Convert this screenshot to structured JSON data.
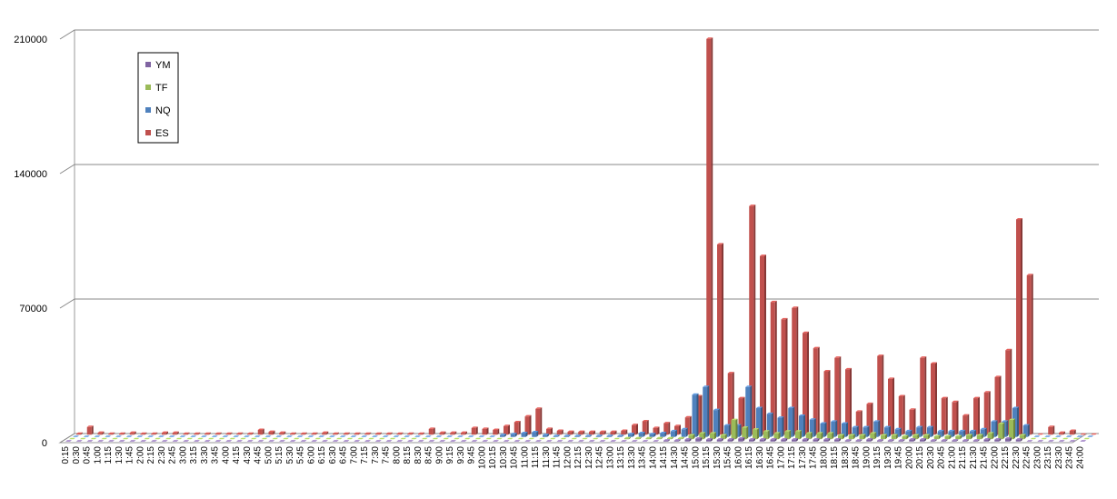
{
  "chart_data": {
    "type": "bar3d",
    "categories": [
      "0:15",
      "0:30",
      "0:45",
      "1:00",
      "1:15",
      "1:30",
      "1:45",
      "2:00",
      "2:15",
      "2:30",
      "2:45",
      "3:00",
      "3:15",
      "3:30",
      "3:45",
      "4:00",
      "4:15",
      "4:30",
      "4:45",
      "5:00",
      "5:15",
      "5:30",
      "5:45",
      "6:00",
      "6:15",
      "6:30",
      "6:45",
      "7:00",
      "7:15",
      "7:30",
      "7:45",
      "8:00",
      "8:15",
      "8:30",
      "8:45",
      "9:00",
      "9:15",
      "9:30",
      "9:45",
      "10:00",
      "10:15",
      "10:30",
      "10:45",
      "11:00",
      "11:15",
      "11:30",
      "11:45",
      "12:00",
      "12:15",
      "12:30",
      "12:45",
      "13:00",
      "13:15",
      "13:30",
      "13:45",
      "14:00",
      "14:15",
      "14:30",
      "14:45",
      "15:00",
      "15:15",
      "15:30",
      "15:45",
      "16:00",
      "16:15",
      "16:30",
      "16:45",
      "17:00",
      "17:15",
      "17:30",
      "17:45",
      "18:00",
      "18:15",
      "18:30",
      "18:45",
      "19:00",
      "19:15",
      "19:30",
      "19:45",
      "20:00",
      "20:15",
      "20:30",
      "20:45",
      "21:00",
      "21:15",
      "21:30",
      "21:45",
      "22:00",
      "22:15",
      "22:30",
      "22:45",
      "23:00",
      "23:15",
      "23:30",
      "23:45",
      "24:00"
    ],
    "series": [
      {
        "name": "YM",
        "color": "#8064a2",
        "values": [
          0,
          0,
          0,
          0,
          0,
          0,
          0,
          0,
          0,
          0,
          0,
          0,
          0,
          0,
          0,
          0,
          0,
          0,
          0,
          0,
          0,
          0,
          0,
          0,
          0,
          0,
          0,
          0,
          0,
          0,
          0,
          0,
          0,
          0,
          0,
          0,
          0,
          0,
          0,
          0,
          0,
          0,
          0,
          0,
          0,
          0,
          0,
          0,
          0,
          0,
          0,
          0,
          0,
          0,
          0,
          0,
          500,
          500,
          1000,
          1500,
          1000,
          1000,
          1000,
          1500,
          1000,
          1000,
          1000,
          1000,
          1000,
          1000,
          1000,
          1000,
          1000,
          500,
          500,
          1000,
          500,
          500,
          500,
          1000,
          1000,
          500,
          500,
          500,
          500,
          500,
          1000,
          1000,
          1500,
          1000,
          0,
          0,
          0,
          0,
          0,
          0
        ]
      },
      {
        "name": "TF",
        "color": "#9bbb59",
        "values": [
          0,
          0,
          0,
          0,
          0,
          0,
          0,
          0,
          0,
          0,
          0,
          0,
          0,
          0,
          0,
          0,
          0,
          0,
          0,
          0,
          0,
          0,
          0,
          0,
          0,
          0,
          0,
          0,
          0,
          0,
          0,
          0,
          0,
          0,
          0,
          0,
          0,
          0,
          0,
          0,
          0,
          0,
          0,
          0,
          0,
          0,
          0,
          0,
          0,
          0,
          0,
          0,
          500,
          500,
          500,
          500,
          500,
          500,
          2000,
          3000,
          3000,
          2000,
          10000,
          6000,
          5000,
          4000,
          3000,
          4000,
          4000,
          3000,
          3000,
          3000,
          2000,
          2000,
          2000,
          3000,
          2000,
          2000,
          1500,
          2000,
          2000,
          1500,
          1500,
          1500,
          2000,
          2000,
          3000,
          8000,
          10000,
          2000,
          0,
          0,
          0,
          0,
          0,
          0
        ]
      },
      {
        "name": "NQ",
        "color": "#4f81bd",
        "values": [
          0,
          0,
          0,
          0,
          0,
          0,
          0,
          0,
          0,
          0,
          0,
          0,
          0,
          0,
          0,
          0,
          0,
          0,
          0,
          0,
          0,
          0,
          0,
          0,
          0,
          0,
          0,
          0,
          0,
          0,
          0,
          0,
          0,
          0,
          0,
          0,
          0,
          0,
          0,
          0,
          1000,
          1500,
          2000,
          2500,
          1000,
          500,
          500,
          500,
          500,
          500,
          500,
          500,
          1500,
          2000,
          1500,
          2000,
          3000,
          4000,
          22000,
          26000,
          14000,
          6000,
          6000,
          26000,
          15000,
          12000,
          10000,
          15000,
          11000,
          9000,
          7000,
          8000,
          7000,
          5000,
          5000,
          8000,
          5000,
          4000,
          3000,
          5000,
          5000,
          3000,
          3000,
          3000,
          3000,
          4000,
          8000,
          8000,
          15000,
          6000,
          0,
          0,
          0,
          0,
          0,
          0
        ]
      },
      {
        "name": "ES",
        "color": "#c0504d",
        "values": [
          500,
          4000,
          1000,
          500,
          500,
          1000,
          500,
          500,
          1000,
          1000,
          500,
          500,
          500,
          500,
          500,
          500,
          500,
          2500,
          1500,
          1000,
          500,
          500,
          500,
          1000,
          500,
          500,
          500,
          500,
          500,
          500,
          500,
          500,
          500,
          3000,
          1000,
          1000,
          1000,
          3500,
          3000,
          2500,
          4500,
          6500,
          9500,
          13500,
          3000,
          2000,
          1500,
          1500,
          1500,
          1500,
          1500,
          2000,
          5000,
          7000,
          3500,
          6000,
          4500,
          9000,
          20000,
          206000,
          99000,
          32000,
          19000,
          119000,
          93000,
          69000,
          60000,
          66000,
          53000,
          45000,
          33000,
          40000,
          34000,
          12000,
          16000,
          41000,
          29000,
          20000,
          13000,
          40000,
          37000,
          19000,
          17000,
          10000,
          19000,
          22000,
          30000,
          44000,
          112000,
          83000,
          0,
          4000,
          1000,
          2000,
          0,
          0
        ]
      }
    ],
    "ylim": [
      0,
      210000
    ],
    "yticks": [
      0,
      70000,
      140000,
      210000
    ],
    "grid": true
  }
}
